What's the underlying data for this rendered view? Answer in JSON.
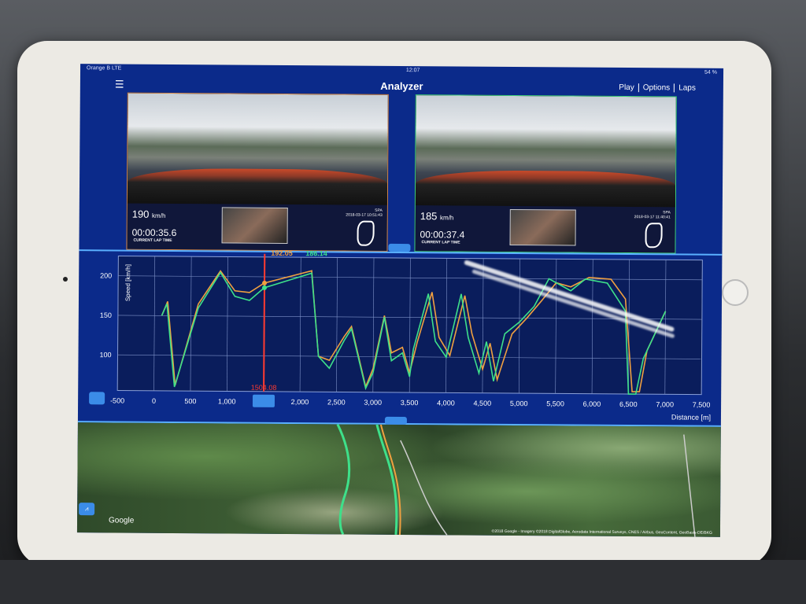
{
  "status_bar": {
    "carrier": "Orange B  LTE",
    "time": "12:07",
    "battery": "54 %"
  },
  "nav": {
    "menu_icon": "hamburger-icon",
    "title": "Analyzer",
    "buttons": [
      "Play",
      "Options",
      "Laps"
    ]
  },
  "videos": [
    {
      "speed": "190",
      "speed_unit": "km/h",
      "lap_time": "00:00:35.6",
      "lap_time_label": "CURRENT LAP TIME",
      "track": "SPA",
      "date": "2018-03-17 10:51:43",
      "accent": "#d78a4a"
    },
    {
      "speed": "185",
      "speed_unit": "km/h",
      "lap_time": "00:00:37.4",
      "lap_time_label": "CURRENT LAP TIME",
      "track": "SPA",
      "date": "2018-03-17 11:40:41",
      "accent": "#3fd27a"
    }
  ],
  "chart_data": {
    "type": "line",
    "ylabel": "Speed [km/h]",
    "xlabel": "Distance [m]",
    "xlim": [
      -500,
      7500
    ],
    "ylim": [
      55,
      225
    ],
    "x_ticks": [
      "-500",
      "0",
      "500",
      "1,000",
      "1,500",
      "2,000",
      "2,500",
      "3,000",
      "3,500",
      "4,000",
      "4,500",
      "5,000",
      "5,500",
      "6,000",
      "6,500",
      "7,000",
      "7,500"
    ],
    "y_ticks": [
      "100",
      "150",
      "200"
    ],
    "grid": true,
    "cursor": {
      "x": 1504.08,
      "label": "1504.08",
      "color": "#ff3b30"
    },
    "series": [
      {
        "color": "#f0a040",
        "cursor_value": "192.05",
        "points": [
          [
            100,
            150
          ],
          [
            180,
            168
          ],
          [
            290,
            62
          ],
          [
            600,
            165
          ],
          [
            900,
            207
          ],
          [
            1100,
            182
          ],
          [
            1300,
            180
          ],
          [
            1500,
            192
          ],
          [
            2150,
            208
          ],
          [
            2250,
            100
          ],
          [
            2400,
            95
          ],
          [
            2500,
            110
          ],
          [
            2600,
            125
          ],
          [
            2700,
            138
          ],
          [
            2900,
            62
          ],
          [
            3000,
            85
          ],
          [
            3150,
            152
          ],
          [
            3250,
            105
          ],
          [
            3400,
            112
          ],
          [
            3500,
            80
          ],
          [
            3600,
            118
          ],
          [
            3800,
            182
          ],
          [
            3900,
            125
          ],
          [
            4050,
            102
          ],
          [
            4250,
            178
          ],
          [
            4350,
            130
          ],
          [
            4500,
            85
          ],
          [
            4600,
            118
          ],
          [
            4700,
            72
          ],
          [
            4900,
            130
          ],
          [
            5100,
            150
          ],
          [
            5300,
            172
          ],
          [
            5500,
            195
          ],
          [
            5700,
            190
          ],
          [
            5950,
            202
          ],
          [
            6250,
            200
          ],
          [
            6450,
            175
          ],
          [
            6550,
            58
          ],
          [
            6650,
            58
          ],
          [
            6750,
            110
          ],
          [
            7000,
            160
          ]
        ]
      },
      {
        "color": "#3ee08a",
        "cursor_value": "186.14",
        "points": [
          [
            100,
            150
          ],
          [
            170,
            165
          ],
          [
            280,
            60
          ],
          [
            600,
            160
          ],
          [
            900,
            205
          ],
          [
            1100,
            175
          ],
          [
            1300,
            170
          ],
          [
            1500,
            186
          ],
          [
            2150,
            205
          ],
          [
            2250,
            100
          ],
          [
            2400,
            85
          ],
          [
            2600,
            120
          ],
          [
            2700,
            135
          ],
          [
            2900,
            60
          ],
          [
            3000,
            80
          ],
          [
            3150,
            150
          ],
          [
            3250,
            95
          ],
          [
            3400,
            105
          ],
          [
            3500,
            75
          ],
          [
            3550,
            110
          ],
          [
            3750,
            180
          ],
          [
            3850,
            120
          ],
          [
            4000,
            100
          ],
          [
            4200,
            180
          ],
          [
            4300,
            125
          ],
          [
            4450,
            80
          ],
          [
            4550,
            120
          ],
          [
            4650,
            70
          ],
          [
            4800,
            130
          ],
          [
            5000,
            145
          ],
          [
            5200,
            165
          ],
          [
            5400,
            200
          ],
          [
            5700,
            185
          ],
          [
            5900,
            200
          ],
          [
            6200,
            195
          ],
          [
            6450,
            160
          ],
          [
            6500,
            55
          ],
          [
            6600,
            55
          ],
          [
            6700,
            100
          ],
          [
            7000,
            160
          ]
        ]
      }
    ]
  },
  "map": {
    "provider": "Google",
    "attribution": "©2018 Google - Imagery ©2018 DigitalGlobe, Aerodata International Surveys, CNES / Airbus, GeoContent, GeoBasis-DE/BKG"
  }
}
